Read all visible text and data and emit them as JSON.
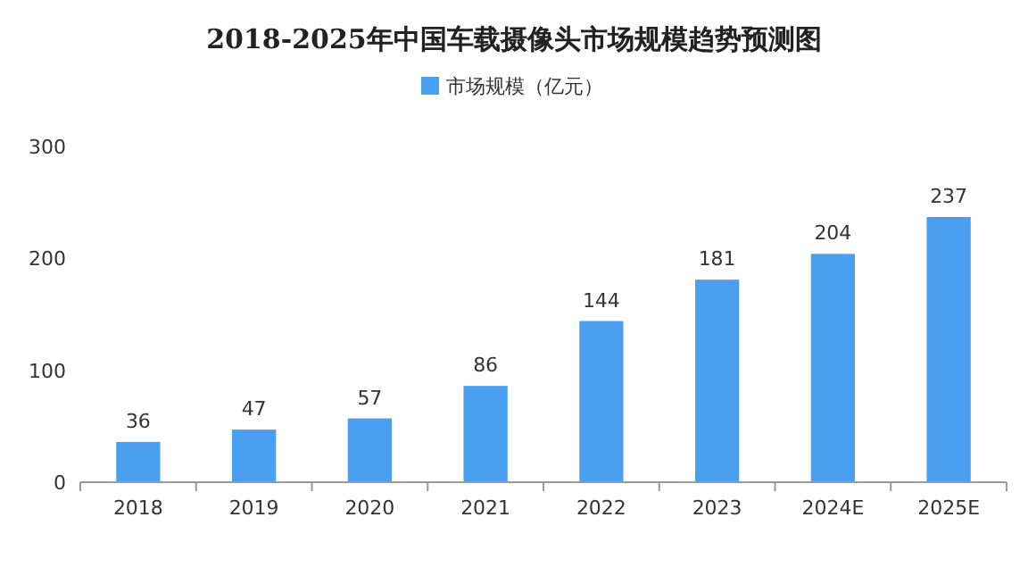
{
  "chart_data": {
    "type": "bar",
    "title": "2018-2025年中国车载摄像头市场规模趋势预测图",
    "categories": [
      "2018",
      "2019",
      "2020",
      "2021",
      "2022",
      "2023",
      "2024E",
      "2025E"
    ],
    "series": [
      {
        "name": "市场规模（亿元）",
        "color": "#4a9ff0",
        "values": [
          36,
          47,
          57,
          86,
          144,
          181,
          204,
          237
        ]
      }
    ],
    "ylim": [
      0,
      300
    ],
    "yticks": [
      0,
      100,
      200,
      300
    ],
    "data_labels": true,
    "legend": "top"
  }
}
